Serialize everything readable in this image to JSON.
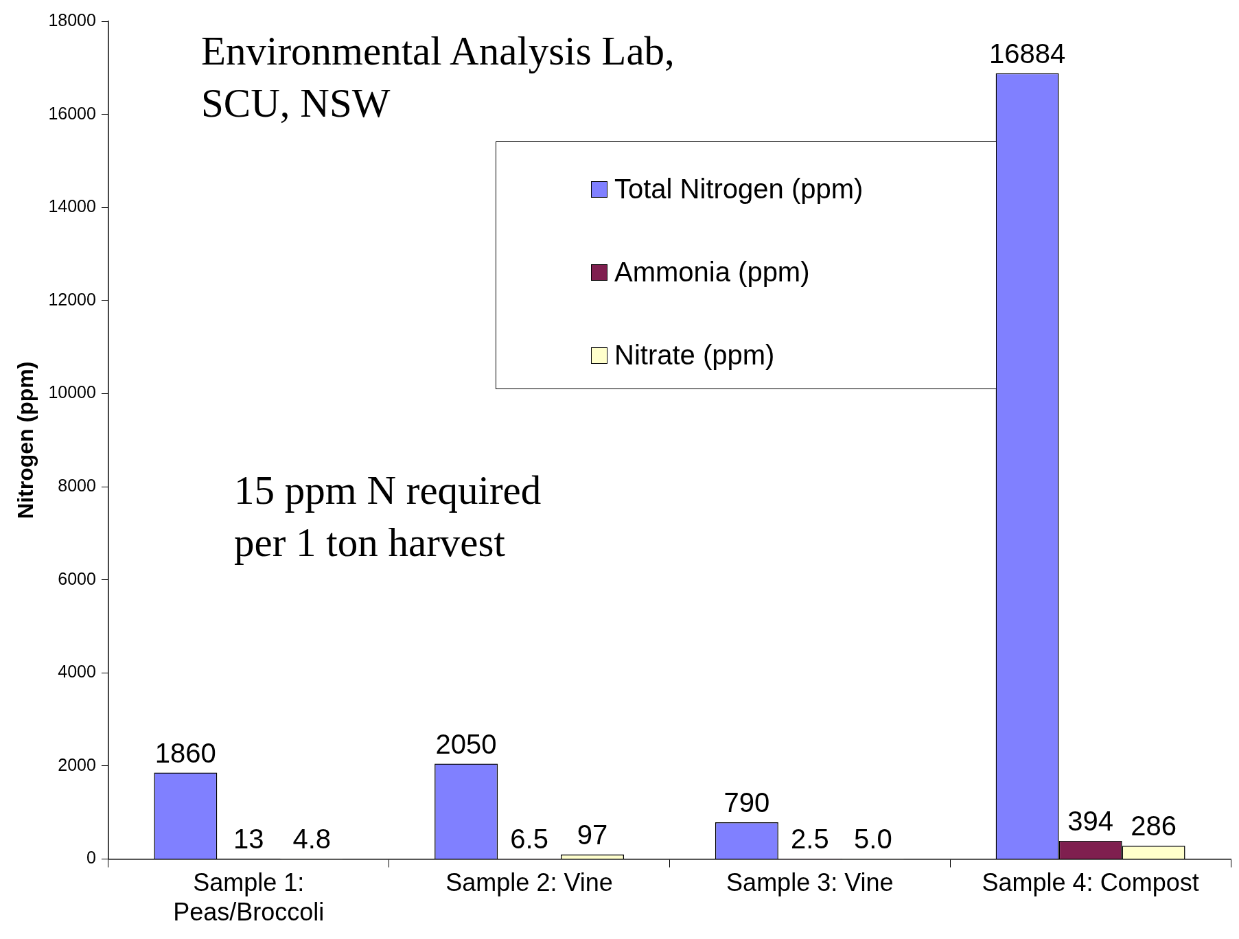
{
  "chart_data": {
    "type": "bar",
    "ylabel": "Nitrogen (ppm)",
    "categories": [
      "Sample 1:\nPeas/Broccoli",
      "Sample 2: Vine",
      "Sample 3: Vine",
      "Sample 4: Compost"
    ],
    "series": [
      {
        "name": "Total Nitrogen (ppm)",
        "color": "#8080ff",
        "values": [
          1860,
          2050,
          790,
          16884
        ],
        "value_labels": [
          "1860",
          "2050",
          "790",
          "16884"
        ]
      },
      {
        "name": "Ammonia (ppm)",
        "color": "#7f1f4f",
        "values": [
          13,
          6.5,
          2.5,
          394
        ],
        "value_labels": [
          "13",
          "6.5",
          "2.5",
          "394"
        ]
      },
      {
        "name": "Nitrate (ppm)",
        "color": "#ffffcc",
        "values": [
          4.8,
          97,
          5.0,
          286
        ],
        "value_labels": [
          "4.8",
          "97",
          "5.0",
          "286"
        ]
      }
    ],
    "ylim": [
      0,
      18000
    ],
    "yticks": [
      0,
      2000,
      4000,
      6000,
      8000,
      10000,
      12000,
      14000,
      16000,
      18000
    ],
    "grid": false,
    "legend": "top right",
    "annotations": [
      "Environmental Analysis Lab,\nSCU, NSW",
      "15 ppm N required\nper 1 ton harvest"
    ]
  }
}
